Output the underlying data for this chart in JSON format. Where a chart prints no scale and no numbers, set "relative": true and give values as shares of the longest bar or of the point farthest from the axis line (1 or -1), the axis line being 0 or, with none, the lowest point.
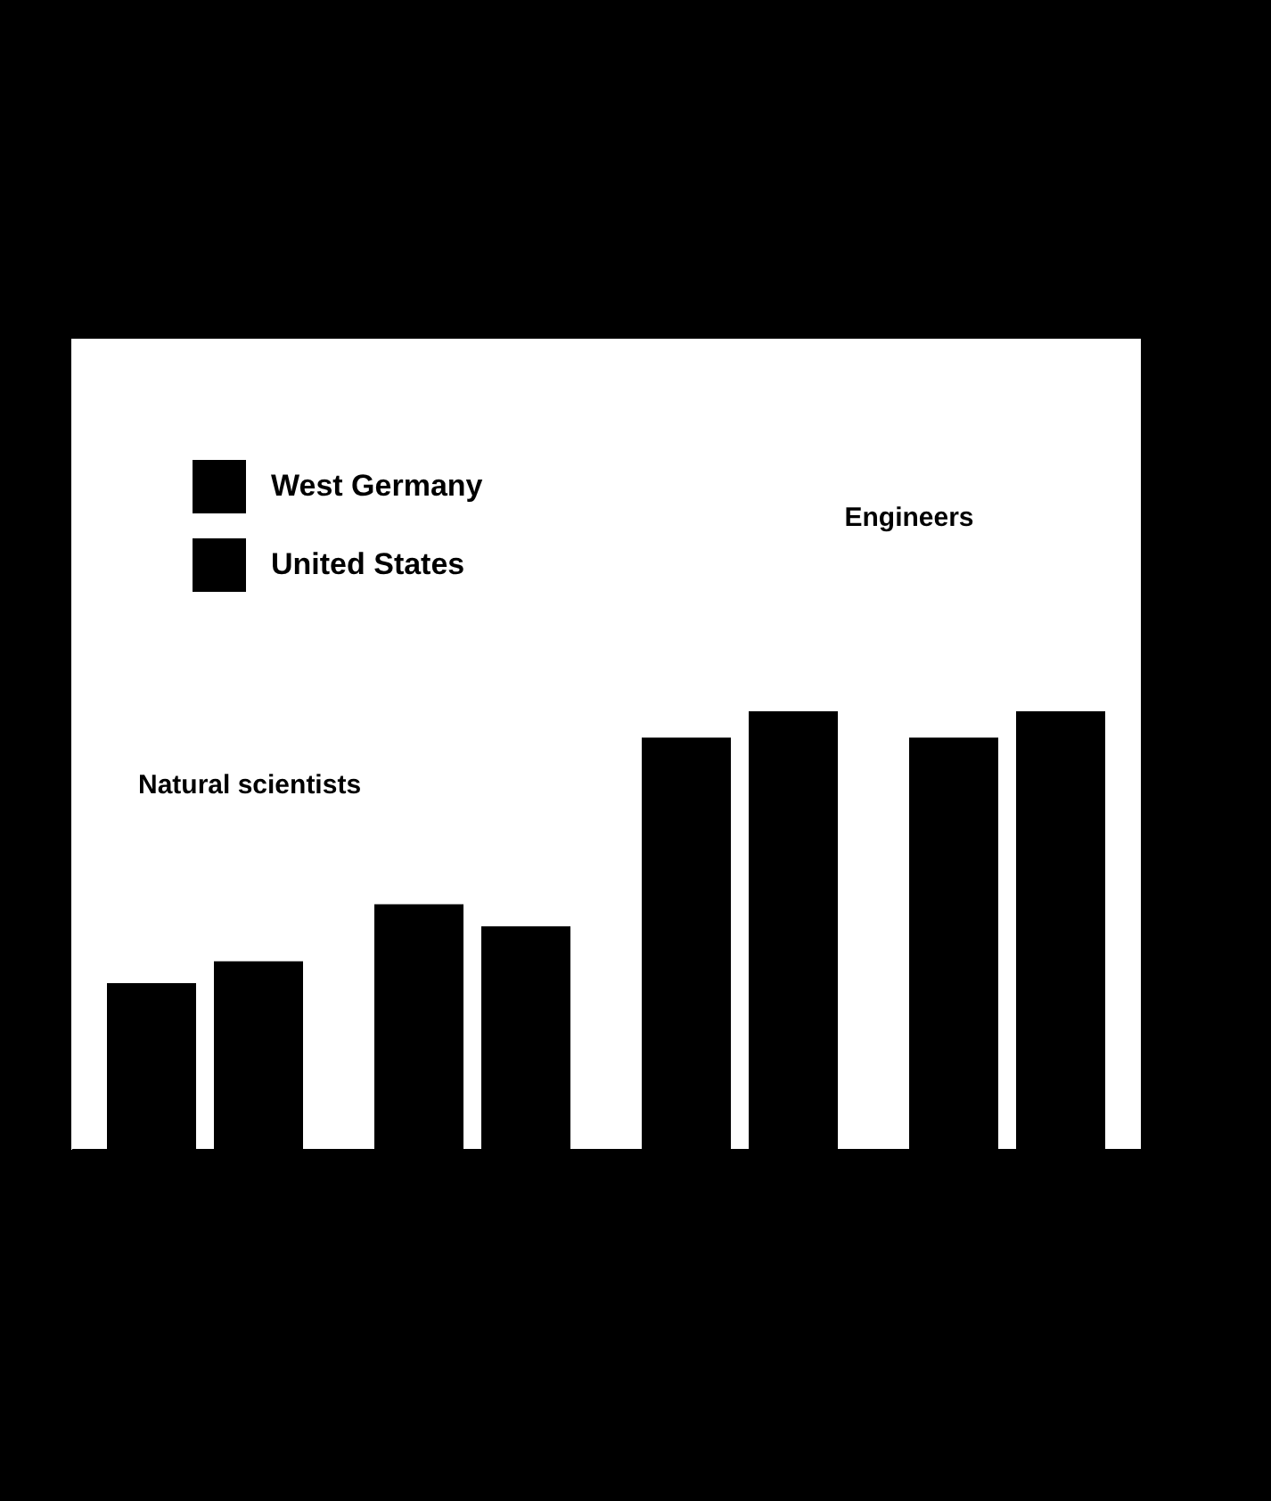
{
  "chart_data": {
    "type": "bar",
    "relative": true,
    "categories": [
      null,
      null,
      null,
      null
    ],
    "series": [
      {
        "name": "West Germany",
        "color": "#000000",
        "values": [
          0.38,
          0.56,
          0.94,
          0.94
        ]
      },
      {
        "name": "United States",
        "color": "#000000",
        "values": [
          0.43,
          0.51,
          1,
          1
        ]
      }
    ],
    "annotations": [
      "Natural scientists",
      "Engineers"
    ],
    "legend": "top left"
  }
}
